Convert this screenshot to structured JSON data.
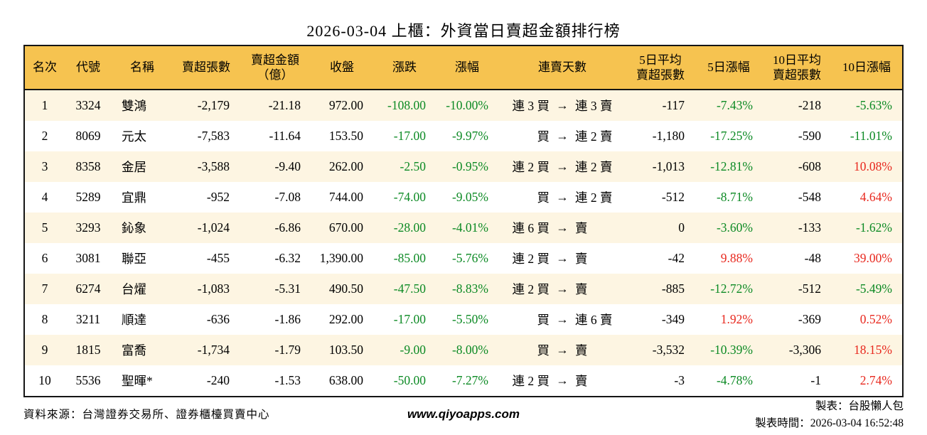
{
  "colors": {
    "up": "#e8281e",
    "down": "#0c8a24",
    "header_bg": "#f6c350",
    "row_alt_bg": "#fdf5e2",
    "border": "#151515"
  },
  "chart_data": {
    "type": "table",
    "title": "2026-03-04 上櫃：外資當日賣超金額排行榜",
    "streak_arrow": "→",
    "columns": [
      {
        "id": "rank",
        "lines": [
          "名次"
        ],
        "num": false,
        "signcolor": false
      },
      {
        "id": "code",
        "lines": [
          "代號"
        ],
        "num": false,
        "signcolor": false
      },
      {
        "id": "name",
        "lines": [
          "名稱"
        ],
        "num": false,
        "signcolor": false
      },
      {
        "id": "sell_volume",
        "lines": [
          "賣超張數"
        ],
        "num": true,
        "signcolor": false
      },
      {
        "id": "sell_amount",
        "lines": [
          "賣超金額",
          "（億）"
        ],
        "num": true,
        "signcolor": false
      },
      {
        "id": "close",
        "lines": [
          "收盤"
        ],
        "num": true,
        "signcolor": false
      },
      {
        "id": "change",
        "lines": [
          "漲跌"
        ],
        "num": true,
        "signcolor": true
      },
      {
        "id": "change_pct",
        "lines": [
          "漲幅"
        ],
        "num": true,
        "signcolor": true
      },
      {
        "id": "streak",
        "lines": [
          "連賣天數"
        ],
        "num": false,
        "signcolor": false
      },
      {
        "id": "avg5",
        "lines": [
          "5日平均",
          "賣超張數"
        ],
        "num": true,
        "signcolor": false
      },
      {
        "id": "pct5",
        "lines": [
          "5日漲幅"
        ],
        "num": true,
        "signcolor": true
      },
      {
        "id": "avg10",
        "lines": [
          "10日平均",
          "賣超張數"
        ],
        "num": true,
        "signcolor": false
      },
      {
        "id": "pct10",
        "lines": [
          "10日漲幅"
        ],
        "num": true,
        "signcolor": true
      }
    ],
    "rows": [
      {
        "rank": "1",
        "code": "3324",
        "name": "雙鴻",
        "sell_volume": "-2,179",
        "sell_amount": "-21.18",
        "close": "972.00",
        "change": "-108.00",
        "change_pct": "-10.00%",
        "streak_from": "連 3 買",
        "streak_to": "連 3 賣",
        "avg5": "-117",
        "pct5": "-7.43%",
        "avg10": "-218",
        "pct10": "-5.63%"
      },
      {
        "rank": "2",
        "code": "8069",
        "name": "元太",
        "sell_volume": "-7,583",
        "sell_amount": "-11.64",
        "close": "153.50",
        "change": "-17.00",
        "change_pct": "-9.97%",
        "streak_from": "買",
        "streak_to": "連 2 賣",
        "avg5": "-1,180",
        "pct5": "-17.25%",
        "avg10": "-590",
        "pct10": "-11.01%"
      },
      {
        "rank": "3",
        "code": "8358",
        "name": "金居",
        "sell_volume": "-3,588",
        "sell_amount": "-9.40",
        "close": "262.00",
        "change": "-2.50",
        "change_pct": "-0.95%",
        "streak_from": "連 2 買",
        "streak_to": "連 2 賣",
        "avg5": "-1,013",
        "pct5": "-12.81%",
        "avg10": "-608",
        "pct10": "10.08%"
      },
      {
        "rank": "4",
        "code": "5289",
        "name": "宜鼎",
        "sell_volume": "-952",
        "sell_amount": "-7.08",
        "close": "744.00",
        "change": "-74.00",
        "change_pct": "-9.05%",
        "streak_from": "買",
        "streak_to": "連 2 賣",
        "avg5": "-512",
        "pct5": "-8.71%",
        "avg10": "-548",
        "pct10": "4.64%"
      },
      {
        "rank": "5",
        "code": "3293",
        "name": "鈊象",
        "sell_volume": "-1,024",
        "sell_amount": "-6.86",
        "close": "670.00",
        "change": "-28.00",
        "change_pct": "-4.01%",
        "streak_from": "連 6 買",
        "streak_to": "賣",
        "avg5": "0",
        "pct5": "-3.60%",
        "avg10": "-133",
        "pct10": "-1.62%"
      },
      {
        "rank": "6",
        "code": "3081",
        "name": "聯亞",
        "sell_volume": "-455",
        "sell_amount": "-6.32",
        "close": "1,390.00",
        "change": "-85.00",
        "change_pct": "-5.76%",
        "streak_from": "連 2 買",
        "streak_to": "賣",
        "avg5": "-42",
        "pct5": "9.88%",
        "avg10": "-48",
        "pct10": "39.00%"
      },
      {
        "rank": "7",
        "code": "6274",
        "name": "台燿",
        "sell_volume": "-1,083",
        "sell_amount": "-5.31",
        "close": "490.50",
        "change": "-47.50",
        "change_pct": "-8.83%",
        "streak_from": "連 2 買",
        "streak_to": "賣",
        "avg5": "-885",
        "pct5": "-12.72%",
        "avg10": "-512",
        "pct10": "-5.49%"
      },
      {
        "rank": "8",
        "code": "3211",
        "name": "順達",
        "sell_volume": "-636",
        "sell_amount": "-1.86",
        "close": "292.00",
        "change": "-17.00",
        "change_pct": "-5.50%",
        "streak_from": "買",
        "streak_to": "連 6 賣",
        "avg5": "-349",
        "pct5": "1.92%",
        "avg10": "-369",
        "pct10": "0.52%"
      },
      {
        "rank": "9",
        "code": "1815",
        "name": "富喬",
        "sell_volume": "-1,734",
        "sell_amount": "-1.79",
        "close": "103.50",
        "change": "-9.00",
        "change_pct": "-8.00%",
        "streak_from": "買",
        "streak_to": "賣",
        "avg5": "-3,532",
        "pct5": "-10.39%",
        "avg10": "-3,306",
        "pct10": "18.15%"
      },
      {
        "rank": "10",
        "code": "5536",
        "name": "聖暉*",
        "sell_volume": "-240",
        "sell_amount": "-1.53",
        "close": "638.00",
        "change": "-50.00",
        "change_pct": "-7.27%",
        "streak_from": "連 2 買",
        "streak_to": "賣",
        "avg5": "-3",
        "pct5": "-4.78%",
        "avg10": "-1",
        "pct10": "2.74%"
      }
    ]
  },
  "footer": {
    "source": "資料來源：台灣證券交易所、證券櫃檯買賣中心",
    "website": "www.qiyoapps.com",
    "maker": "製表：台股懶人包",
    "made_at": "製表時間：2026-03-04 16:52:48"
  }
}
